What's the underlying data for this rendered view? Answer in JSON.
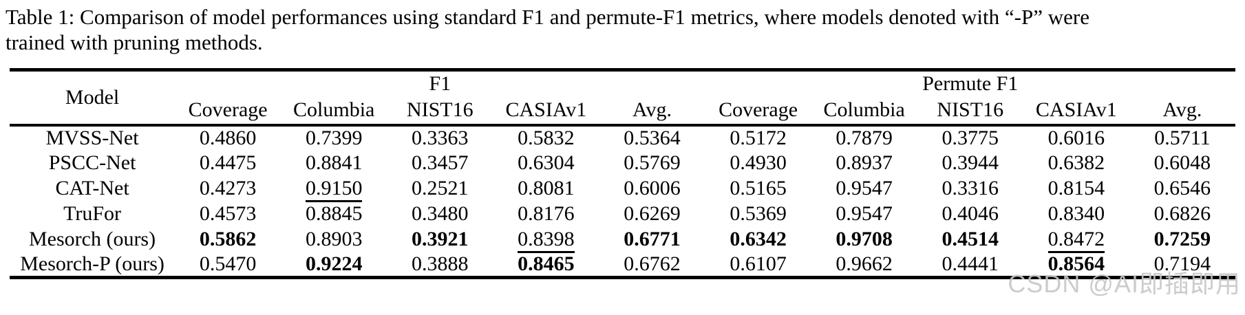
{
  "colors": {
    "background": "#ffffff",
    "text": "#000000",
    "rule": "#000000",
    "watermark": "#c6c6c6"
  },
  "caption": {
    "line1": "Table 1: Comparison of model performances using standard F1 and permute-F1 metrics, where models denoted with “-P” were",
    "line2": "trained with pruning methods."
  },
  "table": {
    "model_header": "Model",
    "groups": [
      {
        "label": "F1",
        "columns": [
          "Coverage",
          "Columbia",
          "NIST16",
          "CASIAv1",
          "Avg."
        ]
      },
      {
        "label": "Permute F1",
        "columns": [
          "Coverage",
          "Columbia",
          "NIST16",
          "CASIAv1",
          "Avg."
        ]
      }
    ],
    "style_legend": {
      "n": "plain",
      "b": "bold-best",
      "u": "underline-second-best"
    },
    "rows": [
      {
        "model": "MVSS-Net",
        "values": [
          "0.4860",
          "0.7399",
          "0.3363",
          "0.5832",
          "0.5364",
          "0.5172",
          "0.7879",
          "0.3775",
          "0.6016",
          "0.5711"
        ],
        "styles": [
          "n",
          "n",
          "n",
          "n",
          "n",
          "n",
          "n",
          "n",
          "n",
          "n"
        ]
      },
      {
        "model": "PSCC-Net",
        "values": [
          "0.4475",
          "0.8841",
          "0.3457",
          "0.6304",
          "0.5769",
          "0.4930",
          "0.8937",
          "0.3944",
          "0.6382",
          "0.6048"
        ],
        "styles": [
          "n",
          "n",
          "n",
          "n",
          "n",
          "n",
          "n",
          "n",
          "n",
          "n"
        ]
      },
      {
        "model": "CAT-Net",
        "values": [
          "0.4273",
          "0.9150",
          "0.2521",
          "0.8081",
          "0.6006",
          "0.5165",
          "0.9547",
          "0.3316",
          "0.8154",
          "0.6546"
        ],
        "styles": [
          "n",
          "u",
          "n",
          "n",
          "n",
          "n",
          "n",
          "n",
          "n",
          "n"
        ]
      },
      {
        "model": "TruFor",
        "values": [
          "0.4573",
          "0.8845",
          "0.3480",
          "0.8176",
          "0.6269",
          "0.5369",
          "0.9547",
          "0.4046",
          "0.8340",
          "0.6826"
        ],
        "styles": [
          "n",
          "n",
          "n",
          "n",
          "n",
          "n",
          "n",
          "n",
          "n",
          "n"
        ]
      },
      {
        "model": "Mesorch (ours)",
        "values": [
          "0.5862",
          "0.8903",
          "0.3921",
          "0.8398",
          "0.6771",
          "0.6342",
          "0.9708",
          "0.4514",
          "0.8472",
          "0.7259"
        ],
        "styles": [
          "b",
          "n",
          "b",
          "u",
          "b",
          "b",
          "b",
          "b",
          "u",
          "b"
        ]
      },
      {
        "model": "Mesorch-P (ours)",
        "values": [
          "0.5470",
          "0.9224",
          "0.3888",
          "0.8465",
          "0.6762",
          "0.6107",
          "0.9662",
          "0.4441",
          "0.8564",
          "0.7194"
        ],
        "styles": [
          "u",
          "b",
          "u",
          "b",
          "u",
          "u",
          "u",
          "u",
          "b",
          "u"
        ]
      }
    ]
  },
  "watermark": {
    "text": "CSDN @AI即插即用"
  }
}
